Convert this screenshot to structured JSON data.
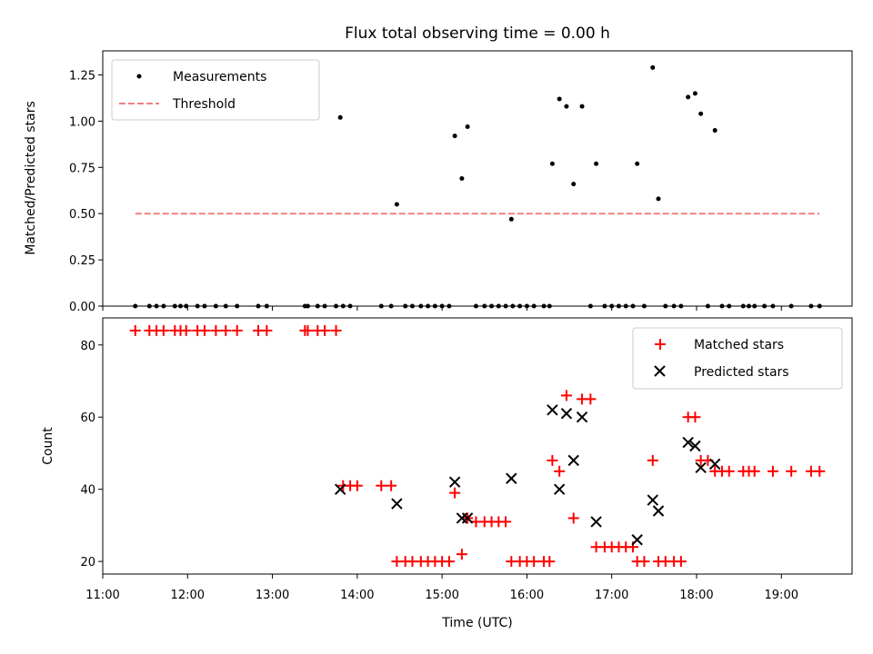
{
  "chart_data": [
    {
      "type": "scatter",
      "title": "Flux total observing time = 0.00 h",
      "xlabel": "",
      "ylabel": "Matched/Predicted stars",
      "xlim": [
        "11:00",
        "19:50"
      ],
      "ylim": [
        0.0,
        1.38
      ],
      "yticks": [
        "0.00",
        "0.25",
        "0.50",
        "0.75",
        "1.00",
        "1.25"
      ],
      "ytick_values": [
        0.0,
        0.25,
        0.5,
        0.75,
        1.0,
        1.25
      ],
      "grid": false,
      "legend_position": "top-left",
      "series": [
        {
          "name": "Measurements",
          "color": "#000000",
          "marker": "dot",
          "points": [
            [
              "11:23",
              0
            ],
            [
              "11:33",
              0
            ],
            [
              "11:38",
              0
            ],
            [
              "11:43",
              0
            ],
            [
              "11:51",
              0
            ],
            [
              "11:55",
              0
            ],
            [
              "11:59",
              0
            ],
            [
              "12:07",
              0
            ],
            [
              "12:12",
              0
            ],
            [
              "12:20",
              0
            ],
            [
              "12:27",
              0
            ],
            [
              "12:35",
              0
            ],
            [
              "12:50",
              0
            ],
            [
              "12:56",
              0
            ],
            [
              "13:23",
              0
            ],
            [
              "13:25",
              0
            ],
            [
              "13:32",
              0
            ],
            [
              "13:37",
              0
            ],
            [
              "13:45",
              0
            ],
            [
              "13:50",
              0
            ],
            [
              "13:55",
              0
            ],
            [
              "13:48",
              1.02
            ],
            [
              "14:17",
              0
            ],
            [
              "14:24",
              0
            ],
            [
              "14:28",
              0.55
            ],
            [
              "14:34",
              0
            ],
            [
              "14:39",
              0
            ],
            [
              "14:45",
              0
            ],
            [
              "14:50",
              0
            ],
            [
              "14:55",
              0
            ],
            [
              "15:00",
              0
            ],
            [
              "15:05",
              0
            ],
            [
              "15:09",
              0.92
            ],
            [
              "15:14",
              0.69
            ],
            [
              "15:18",
              0.97
            ],
            [
              "15:24",
              0
            ],
            [
              "15:30",
              0
            ],
            [
              "15:35",
              0
            ],
            [
              "15:40",
              0
            ],
            [
              "15:45",
              0
            ],
            [
              "15:50",
              0
            ],
            [
              "15:49",
              0.47
            ],
            [
              "15:55",
              0
            ],
            [
              "16:00",
              0
            ],
            [
              "16:05",
              0
            ],
            [
              "16:12",
              0
            ],
            [
              "16:16",
              0
            ],
            [
              "16:18",
              0.77
            ],
            [
              "16:23",
              1.12
            ],
            [
              "16:28",
              1.08
            ],
            [
              "16:33",
              0.66
            ],
            [
              "16:39",
              1.08
            ],
            [
              "16:45",
              0
            ],
            [
              "16:49",
              0.77
            ],
            [
              "16:55",
              0
            ],
            [
              "17:00",
              0
            ],
            [
              "17:05",
              0
            ],
            [
              "17:10",
              0
            ],
            [
              "17:15",
              0
            ],
            [
              "17:18",
              0.77
            ],
            [
              "17:23",
              0
            ],
            [
              "17:29",
              1.29
            ],
            [
              "17:33",
              0.58
            ],
            [
              "17:38",
              0
            ],
            [
              "17:44",
              0
            ],
            [
              "17:49",
              0
            ],
            [
              "17:54",
              1.13
            ],
            [
              "17:59",
              1.15
            ],
            [
              "18:03",
              1.04
            ],
            [
              "18:08",
              0
            ],
            [
              "18:13",
              0.95
            ],
            [
              "18:18",
              0
            ],
            [
              "18:23",
              0
            ],
            [
              "18:33",
              0
            ],
            [
              "18:37",
              0
            ],
            [
              "18:41",
              0
            ],
            [
              "18:48",
              0
            ],
            [
              "18:54",
              0
            ],
            [
              "19:07",
              0
            ],
            [
              "19:21",
              0
            ],
            [
              "19:27",
              0
            ]
          ]
        },
        {
          "name": "Threshold",
          "color": "#f08080",
          "style": "dashed",
          "x": [
            "11:23",
            "19:27"
          ],
          "y": [
            0.5,
            0.5
          ]
        }
      ]
    },
    {
      "type": "scatter",
      "title": "",
      "xlabel": "Time (UTC)",
      "ylabel": "Count",
      "xlim": [
        "11:00",
        "19:50"
      ],
      "ylim": [
        16.5,
        87.5
      ],
      "xticks": [
        "11:00",
        "12:00",
        "13:00",
        "14:00",
        "15:00",
        "16:00",
        "17:00",
        "18:00",
        "19:00"
      ],
      "yticks": [
        "20",
        "40",
        "60",
        "80"
      ],
      "ytick_values": [
        20,
        40,
        60,
        80
      ],
      "grid": false,
      "legend_position": "top-right",
      "series": [
        {
          "name": "Matched stars",
          "color": "#ff0000",
          "marker": "plus",
          "points": [
            [
              "11:23",
              84
            ],
            [
              "11:33",
              84
            ],
            [
              "11:38",
              84
            ],
            [
              "11:43",
              84
            ],
            [
              "11:51",
              84
            ],
            [
              "11:55",
              84
            ],
            [
              "11:59",
              84
            ],
            [
              "12:07",
              84
            ],
            [
              "12:12",
              84
            ],
            [
              "12:20",
              84
            ],
            [
              "12:27",
              84
            ],
            [
              "12:35",
              84
            ],
            [
              "12:50",
              84
            ],
            [
              "12:56",
              84
            ],
            [
              "13:23",
              84
            ],
            [
              "13:25",
              84
            ],
            [
              "13:32",
              84
            ],
            [
              "13:37",
              84
            ],
            [
              "13:45",
              84
            ],
            [
              "13:50",
              41
            ],
            [
              "13:55",
              41
            ],
            [
              "14:00",
              41
            ],
            [
              "14:17",
              41
            ],
            [
              "14:24",
              41
            ],
            [
              "14:28",
              20
            ],
            [
              "14:34",
              20
            ],
            [
              "14:39",
              20
            ],
            [
              "14:45",
              20
            ],
            [
              "14:50",
              20
            ],
            [
              "14:55",
              20
            ],
            [
              "15:00",
              20
            ],
            [
              "15:05",
              20
            ],
            [
              "15:09",
              39
            ],
            [
              "15:14",
              22
            ],
            [
              "15:18",
              32
            ],
            [
              "15:24",
              31
            ],
            [
              "15:30",
              31
            ],
            [
              "15:35",
              31
            ],
            [
              "15:40",
              31
            ],
            [
              "15:45",
              31
            ],
            [
              "15:49",
              20
            ],
            [
              "15:55",
              20
            ],
            [
              "16:00",
              20
            ],
            [
              "16:05",
              20
            ],
            [
              "16:12",
              20
            ],
            [
              "16:16",
              20
            ],
            [
              "16:18",
              48
            ],
            [
              "16:23",
              45
            ],
            [
              "16:28",
              66
            ],
            [
              "16:33",
              32
            ],
            [
              "16:39",
              65
            ],
            [
              "16:45",
              65
            ],
            [
              "16:49",
              24
            ],
            [
              "16:55",
              24
            ],
            [
              "17:00",
              24
            ],
            [
              "17:05",
              24
            ],
            [
              "17:10",
              24
            ],
            [
              "17:15",
              24
            ],
            [
              "17:18",
              20
            ],
            [
              "17:23",
              20
            ],
            [
              "17:29",
              48
            ],
            [
              "17:33",
              20
            ],
            [
              "17:38",
              20
            ],
            [
              "17:44",
              20
            ],
            [
              "17:49",
              20
            ],
            [
              "17:54",
              60
            ],
            [
              "17:59",
              60
            ],
            [
              "18:03",
              48
            ],
            [
              "18:08",
              48
            ],
            [
              "18:13",
              45
            ],
            [
              "18:18",
              45
            ],
            [
              "18:23",
              45
            ],
            [
              "18:33",
              45
            ],
            [
              "18:37",
              45
            ],
            [
              "18:41",
              45
            ],
            [
              "18:54",
              45
            ],
            [
              "19:07",
              45
            ],
            [
              "19:21",
              45
            ],
            [
              "19:27",
              45
            ]
          ]
        },
        {
          "name": "Predicted stars",
          "color": "#000000",
          "marker": "cross",
          "points": [
            [
              "13:48",
              40
            ],
            [
              "14:28",
              36
            ],
            [
              "15:09",
              42
            ],
            [
              "15:14",
              32
            ],
            [
              "15:18",
              32
            ],
            [
              "15:49",
              43
            ],
            [
              "16:18",
              62
            ],
            [
              "16:23",
              40
            ],
            [
              "16:28",
              61
            ],
            [
              "16:33",
              48
            ],
            [
              "16:39",
              60
            ],
            [
              "16:49",
              31
            ],
            [
              "17:18",
              26
            ],
            [
              "17:29",
              37
            ],
            [
              "17:33",
              34
            ],
            [
              "17:54",
              53
            ],
            [
              "17:59",
              52
            ],
            [
              "18:03",
              46
            ],
            [
              "18:13",
              47
            ]
          ]
        }
      ]
    }
  ]
}
